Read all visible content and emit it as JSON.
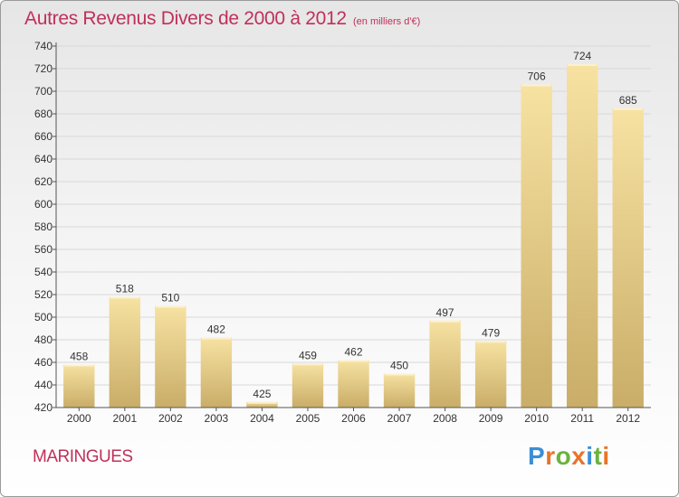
{
  "title": "Autres Revenus Divers de 2000 à 2012",
  "subtitle": "(en milliers d'€)",
  "location": "MARINGUES",
  "brand": {
    "text": "Proxiti",
    "letter_colors": [
      "#3a8fd6",
      "#e8742a",
      "#6bb33e",
      "#e8742a",
      "#3a8fd6",
      "#6bb33e",
      "#e8742a"
    ]
  },
  "colors": {
    "accent": "#c0305a",
    "bar_light": "#f7e2a2",
    "bar_dark": "#c9ad68",
    "grid": "#d8d8d8"
  },
  "chart_data": {
    "type": "bar",
    "categories": [
      "2000",
      "2001",
      "2002",
      "2003",
      "2004",
      "2005",
      "2006",
      "2007",
      "2008",
      "2009",
      "2010",
      "2011",
      "2012"
    ],
    "values": [
      458,
      518,
      510,
      482,
      425,
      459,
      462,
      450,
      497,
      479,
      706,
      724,
      685
    ],
    "ylim": [
      420,
      740
    ],
    "ytick_step": 20,
    "grid": true,
    "xlabel": "",
    "ylabel": ""
  }
}
